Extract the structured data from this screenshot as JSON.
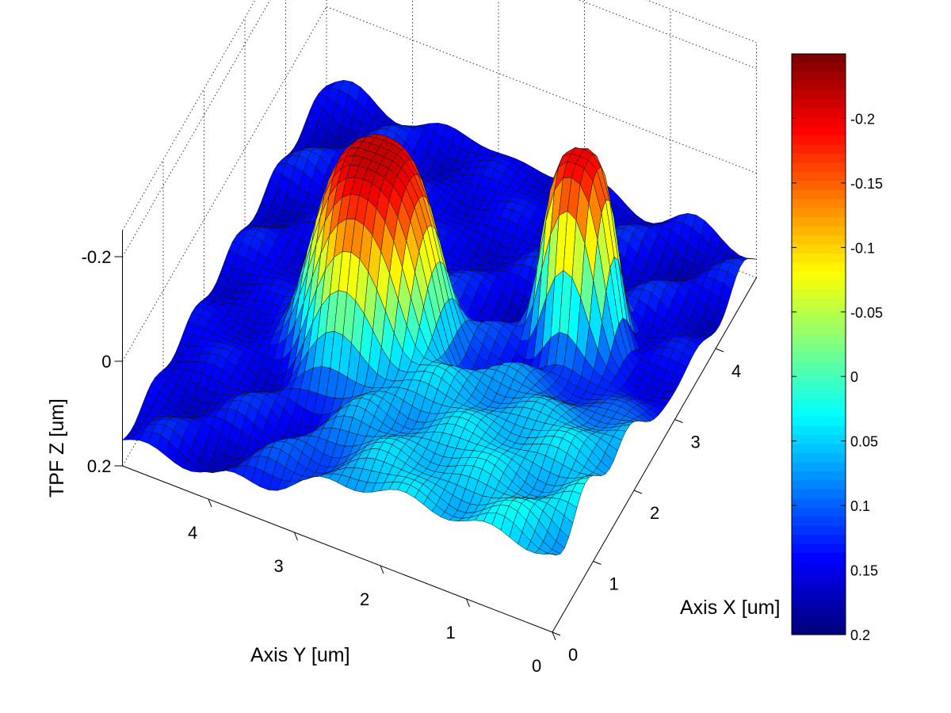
{
  "chart_data": {
    "type": "surface",
    "title": "",
    "xlabel": "Axis X [um]",
    "ylabel": "Axis Y [um]",
    "zlabel": "TPF Z [um]",
    "x_range": [
      0,
      5
    ],
    "y_range": [
      0,
      5
    ],
    "z_range": [
      0.2,
      -0.25
    ],
    "z_direction": "reversed",
    "x_ticks": [
      0,
      1,
      2,
      3,
      4
    ],
    "y_ticks": [
      0,
      1,
      2,
      3,
      4
    ],
    "z_ticks": [
      -0.2,
      0,
      0.2
    ],
    "x_tick_labels": [
      "0",
      "1",
      "2",
      "3",
      "4"
    ],
    "y_tick_labels": [
      "0",
      "1",
      "2",
      "3",
      "4"
    ],
    "z_tick_labels": [
      "-0.2",
      "0",
      "0.2"
    ],
    "grid": true,
    "colormap": "jet",
    "colorbar": {
      "placement": "right",
      "range": [
        -0.25,
        0.2
      ],
      "ticks": [
        -0.2,
        -0.15,
        -0.1,
        -0.05,
        0,
        0.05,
        0.1,
        0.15,
        0.2
      ],
      "tick_labels": [
        "-0.2",
        "-0.15",
        "-0.1",
        "-0.05",
        "0",
        "0.05",
        "0.1",
        "0.15",
        "0.2"
      ]
    },
    "features": [
      {
        "type": "depression",
        "center_x": 2.2,
        "center_y": 3.1,
        "radius": 0.75,
        "min_z": -0.22
      },
      {
        "type": "depression",
        "center_x": 3.2,
        "center_y": 1.2,
        "radius": 0.45,
        "min_z": -0.2
      }
    ],
    "baseline_z": 0.15,
    "low_x_region_z": 0.05
  }
}
